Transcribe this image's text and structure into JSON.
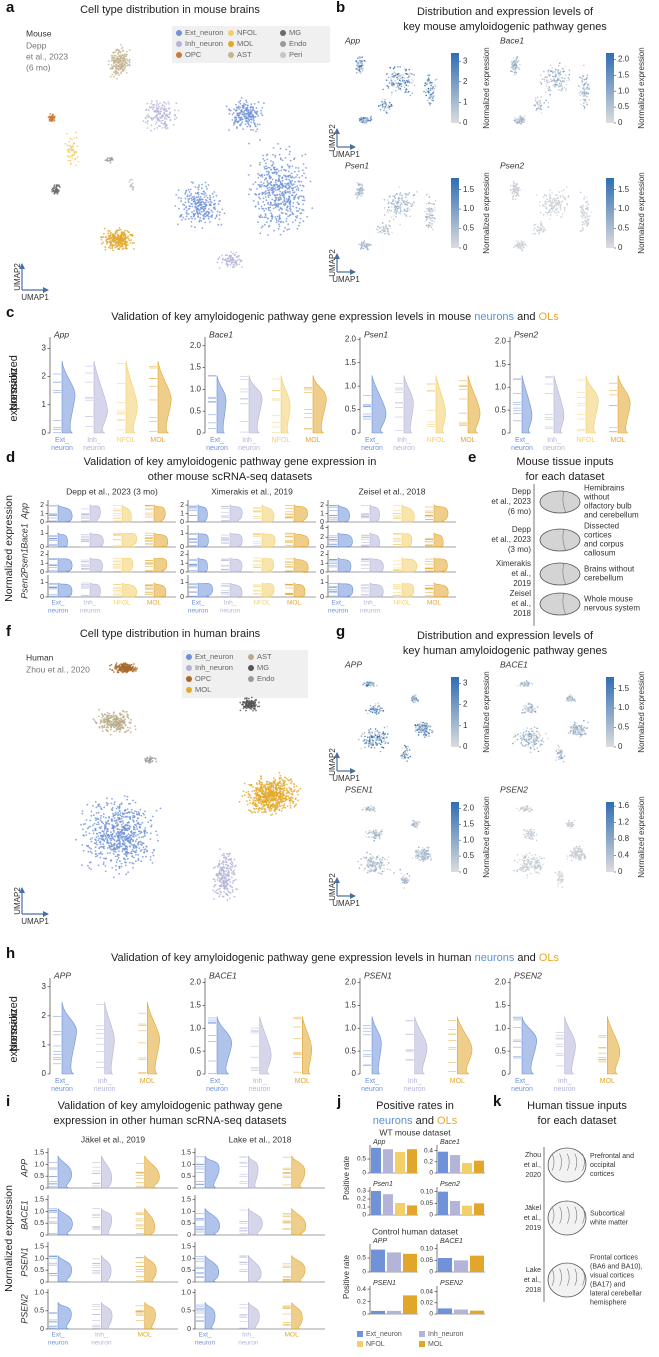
{
  "panel_a": {
    "label": "a",
    "title": "Cell type distribution in mouse brains",
    "species": "Mouse",
    "dataset": [
      "Depp",
      "et al., 2023",
      "(6 mo)"
    ],
    "legend": [
      {
        "name": "Ext_neuron",
        "color": "#7092d8"
      },
      {
        "name": "NFOL",
        "color": "#f3cf6a"
      },
      {
        "name": "MG",
        "color": "#6b6b6b"
      },
      {
        "name": "Inh_neuron",
        "color": "#b4b4d8"
      },
      {
        "name": "MOL",
        "color": "#e2a62b"
      },
      {
        "name": "Endo",
        "color": "#9a9a9a"
      },
      {
        "name": "OPC",
        "color": "#c9793a"
      },
      {
        "name": "AST",
        "color": "#c3b592"
      },
      {
        "name": "Peri",
        "color": "#c4c4c4"
      }
    ],
    "axis_x": "UMAP1",
    "axis_y": "UMAP2"
  },
  "panel_b": {
    "label": "b",
    "title": [
      "Distribution and expression levels of",
      "key mouse amyloidogenic pathway genes"
    ],
    "colorbar_label": "Normalized expression",
    "axis_x": "UMAP1",
    "axis_y": "UMAP2",
    "genes": [
      {
        "name": "App",
        "ticks": [
          0,
          1,
          2,
          3
        ],
        "lim": [
          0,
          3.4
        ]
      },
      {
        "name": "Bace1",
        "ticks": [
          0,
          0.5,
          {
            "value": 1,
            "label": "1.0"
          },
          1.5,
          {
            "value": 2,
            "label": "2.0"
          }
        ],
        "lim": [
          0,
          2.2
        ]
      },
      {
        "name": "Psen1",
        "ticks": [
          0,
          0.5,
          {
            "value": 1,
            "label": "1.0"
          },
          1.5
        ],
        "lim": [
          0,
          1.8
        ]
      },
      {
        "name": "Psen2",
        "ticks": [
          0,
          0.5,
          {
            "value": 1,
            "label": "1.0"
          },
          1.5
        ],
        "lim": [
          0,
          1.8
        ]
      }
    ]
  },
  "panel_c": {
    "label": "c",
    "title": [
      "Validation of key amyloidogenic pathway gene expression levels in mouse ",
      "neurons",
      " and ",
      "OLs"
    ],
    "y_label": [
      "Normalized",
      "expression"
    ],
    "categories": [
      [
        "Ext_",
        "neuron"
      ],
      [
        "Inh_",
        "neuron"
      ],
      [
        "NFOL"
      ],
      [
        "MOL"
      ]
    ],
    "colors": [
      "#7092d8",
      "#b4b4d8",
      "#f3cf6a",
      "#e2a62b"
    ],
    "genes": [
      {
        "name": "App",
        "yticks": [
          0,
          1,
          2,
          3
        ],
        "ylim": [
          0,
          3.4
        ]
      },
      {
        "name": "Bace1",
        "yticks": [
          0,
          0.5,
          {
            "value": 1,
            "label": "1.0"
          },
          1.5,
          {
            "value": 2,
            "label": "2.0"
          }
        ],
        "ylim": [
          0,
          2.2
        ]
      },
      {
        "name": "Psen1",
        "yticks": [
          0,
          0.5,
          {
            "value": 1,
            "label": "1.0"
          },
          1.5,
          {
            "value": 2,
            "label": "2.0"
          }
        ],
        "ylim": [
          0,
          2.05
        ]
      },
      {
        "name": "Psen2",
        "yticks": [
          0,
          0.5,
          {
            "value": 1,
            "label": "1.0"
          },
          1.5,
          {
            "value": 2,
            "label": "2.0"
          }
        ],
        "ylim": [
          0,
          2.1
        ]
      }
    ]
  },
  "panel_d": {
    "label": "d",
    "title": [
      "Validation of key amyloidogenic pathway gene expression in",
      "other mouse scRNA-seq datasets"
    ],
    "y_label": "Normalized expression",
    "genes": [
      "App",
      "Bace1",
      "Psen1",
      "Psen2"
    ],
    "categories": [
      [
        "Ext_",
        "neuron"
      ],
      [
        "Inh_",
        "neuron"
      ],
      [
        "NFOL"
      ],
      [
        "MOL"
      ]
    ],
    "colors": [
      "#7092d8",
      "#b4b4d8",
      "#f3cf6a",
      "#e2a62b"
    ],
    "datasets": [
      {
        "name": "Depp et al., 2023 (3 mo)",
        "rows": [
          {
            "yticks": [
              0,
              1,
              2
            ],
            "ylim": [
              0,
              2.6
            ]
          },
          {
            "yticks": [
              0,
              1
            ],
            "ylim": [
              0,
              1.6
            ]
          },
          {
            "yticks": [
              0,
              1,
              2
            ],
            "ylim": [
              0,
              2.5
            ]
          },
          {
            "yticks": [
              0,
              1
            ],
            "ylim": [
              0,
              1.5
            ]
          }
        ]
      },
      {
        "name": "Ximerakis et al., 2019",
        "rows": [
          {
            "yticks": [
              0,
              1,
              2
            ],
            "ylim": [
              0,
              2.6
            ]
          },
          {
            "yticks": [
              0,
              1
            ],
            "ylim": [
              0,
              1.6
            ]
          },
          {
            "yticks": [
              0,
              1,
              2
            ],
            "ylim": [
              0,
              2.5
            ]
          },
          {
            "yticks": [
              0,
              1
            ],
            "ylim": [
              0,
              1.5
            ]
          }
        ]
      },
      {
        "name": "Zeisel et al., 2018",
        "rows": [
          {
            "yticks": [
              0,
              1,
              2
            ],
            "ylim": [
              0,
              2.6
            ]
          },
          {
            "yticks": [
              0,
              2,
              4
            ],
            "ylim": [
              0,
              4.5
            ]
          },
          {
            "yticks": [
              0,
              1,
              2
            ],
            "ylim": [
              0,
              2.5
            ]
          },
          {
            "yticks": [
              0,
              1
            ],
            "ylim": [
              0,
              1.5
            ]
          }
        ]
      }
    ]
  },
  "panel_e": {
    "label": "e",
    "title": [
      "Mouse tissue inputs",
      "for each dataset"
    ],
    "rows": [
      {
        "dataset": [
          "Depp",
          "et al., 2023",
          "(6 mo)"
        ],
        "tissue": [
          "Hemibrains",
          "without",
          "olfactory bulb",
          "and cerebellum"
        ]
      },
      {
        "dataset": [
          "Depp",
          "et al., 2023",
          "(3 mo)"
        ],
        "tissue": [
          "Dissected",
          "cortices",
          "and corpus",
          "callosum"
        ]
      },
      {
        "dataset": [
          "Ximerakis",
          "et al.,",
          "2019"
        ],
        "tissue": [
          "Brains without",
          "cerebellum"
        ]
      },
      {
        "dataset": [
          "Zeisel",
          "et al.,",
          "2018"
        ],
        "tissue": [
          "Whole mouse",
          "nervous system"
        ]
      }
    ]
  },
  "panel_f": {
    "label": "f",
    "title": "Cell type distribution in human brains",
    "species": "Human",
    "dataset": "Zhou et al., 2020",
    "legend": [
      {
        "name": "Ext_neuron",
        "color": "#6f92d6"
      },
      {
        "name": "AST",
        "color": "#b9ab8a"
      },
      {
        "name": "Inh_neuron",
        "color": "#b2b2d6"
      },
      {
        "name": "MG",
        "color": "#555555"
      },
      {
        "name": "OPC",
        "color": "#a8692a"
      },
      {
        "name": "Endo",
        "color": "#9a9a9a"
      },
      {
        "name": "MOL",
        "color": "#e3a92a"
      }
    ],
    "axis_x": "UMAP1",
    "axis_y": "UMAP2"
  },
  "panel_g": {
    "label": "g",
    "title": [
      "Distribution and expression levels of",
      "key human amyloidogenic pathway genes"
    ],
    "colorbar_label": "Normalized expression",
    "axis_x": "UMAP1",
    "axis_y": "UMAP2",
    "genes": [
      {
        "name": "APP",
        "ticks": [
          0,
          1,
          2,
          3
        ],
        "lim": [
          0,
          3.3
        ]
      },
      {
        "name": "BACE1",
        "ticks": [
          0,
          0.5,
          {
            "value": 1,
            "label": "1.0"
          },
          1.5
        ],
        "lim": [
          0,
          1.8
        ]
      },
      {
        "name": "PSEN1",
        "ticks": [
          0,
          0.5,
          {
            "value": 1,
            "label": "1.0"
          },
          1.5,
          {
            "value": 2,
            "label": "2.0"
          }
        ],
        "lim": [
          0,
          2.2
        ]
      },
      {
        "name": "PSEN2",
        "ticks": [
          0,
          0.4,
          0.8,
          1.2,
          1.6
        ],
        "lim": [
          0,
          1.7
        ]
      }
    ]
  },
  "panel_h": {
    "label": "h",
    "title": [
      "Validation of key amyloidogenic pathway gene expression levels in human ",
      "neurons",
      " and ",
      "OLs"
    ],
    "y_label": [
      "Normalized",
      "expression"
    ],
    "categories": [
      [
        "Ext_",
        "neuron"
      ],
      [
        "Inh_",
        "neuron"
      ],
      [
        "MOL"
      ]
    ],
    "colors": [
      "#7092d8",
      "#b4b4d8",
      "#e2a62b"
    ],
    "genes": [
      {
        "name": "APP",
        "yticks": [
          0,
          1,
          2,
          3
        ],
        "ylim": [
          0,
          3.3
        ]
      },
      {
        "name": "BACE1",
        "yticks": [
          0,
          0.5,
          {
            "value": 1,
            "label": "1.0"
          },
          1.5,
          {
            "value": 2,
            "label": "2.0"
          }
        ],
        "ylim": [
          0,
          2.1
        ]
      },
      {
        "name": "PSEN1",
        "yticks": [
          0,
          0.5,
          {
            "value": 1,
            "label": "1.0"
          },
          1.5,
          {
            "value": 2,
            "label": "2.0"
          }
        ],
        "ylim": [
          0,
          2.1
        ]
      },
      {
        "name": "PSEN2",
        "yticks": [
          0,
          0.5,
          {
            "value": 1,
            "label": "1.0"
          },
          1.5,
          {
            "value": 2,
            "label": "2.0"
          }
        ],
        "ylim": [
          0,
          2.1
        ]
      }
    ]
  },
  "panel_i": {
    "label": "i",
    "title": [
      "Validation of key amyloidogenic pathway gene",
      "expression in other human scRNA-seq datasets"
    ],
    "y_label": "Normalized expression",
    "genes": [
      "APP",
      "BACE1",
      "PSEN1",
      "PSEN2"
    ],
    "categories": [
      [
        "Ext_",
        "neuron"
      ],
      [
        "Inh_",
        "neuron"
      ],
      [
        "MOL"
      ]
    ],
    "colors": [
      "#7092d8",
      "#b4b4d8",
      "#e2a62b"
    ],
    "datasets": [
      {
        "name": "Jäkel et al., 2019",
        "rows": [
          {
            "yticks": [
              0,
              0.5,
              {
                "value": 1,
                "label": "1.0"
              },
              1.5
            ],
            "ylim": [
              0,
              1.7
            ]
          },
          {
            "yticks": [
              0,
              0.5,
              {
                "value": 1,
                "label": "1.0"
              },
              1.5
            ],
            "ylim": [
              0,
              1.7
            ]
          },
          {
            "yticks": [
              0,
              0.5,
              {
                "value": 1,
                "label": "1.0"
              },
              1.5
            ],
            "ylim": [
              0,
              1.7
            ]
          },
          {
            "yticks": [
              0,
              0.5,
              {
                "value": 1,
                "label": "1.0"
              }
            ],
            "ylim": [
              0,
              1.1
            ]
          }
        ]
      },
      {
        "name": "Lake et al., 2018",
        "rows": [
          {
            "yticks": [
              0,
              0.5,
              {
                "value": 1,
                "label": "1.0"
              },
              1.5
            ],
            "ylim": [
              0,
              1.7
            ]
          },
          {
            "yticks": [
              0,
              0.5,
              {
                "value": 1,
                "label": "1.0"
              },
              1.5
            ],
            "ylim": [
              0,
              1.7
            ]
          },
          {
            "yticks": [
              0,
              0.5,
              {
                "value": 1,
                "label": "1.0"
              },
              1.5
            ],
            "ylim": [
              0,
              1.7
            ]
          },
          {
            "yticks": [
              0,
              0.5,
              {
                "value": 1,
                "label": "1.0"
              }
            ],
            "ylim": [
              0,
              1.1
            ]
          }
        ]
      }
    ]
  },
  "panel_j": {
    "label": "j",
    "title": [
      "Positive rates in",
      "neurons",
      " and ",
      "OLs"
    ],
    "y_label": "Positive rate",
    "legend": [
      {
        "name": "Ext_neuron",
        "color": "#7092d8"
      },
      {
        "name": "Inh_neuron",
        "color": "#b4b4d8"
      },
      {
        "name": "NFOL",
        "color": "#f3cf6a"
      },
      {
        "name": "MOL",
        "color": "#e2a62b"
      }
    ],
    "datasets": [
      {
        "name": "WT mouse dataset",
        "colors": [
          "#7092d8",
          "#b4b4d8",
          "#f3cf6a",
          "#e2a62b"
        ],
        "charts": [
          {
            "type": "bar",
            "gene": "App",
            "values": [
              0.9,
              0.85,
              0.75,
              0.85
            ],
            "ylim": [
              0,
              1
            ],
            "yticks": [
              0,
              0.5
            ]
          },
          {
            "type": "bar",
            "gene": "Bace1",
            "values": [
              0.38,
              0.32,
              0.18,
              0.22
            ],
            "ylim": [
              0,
              0.5
            ],
            "yticks": [
              0,
              0.2,
              0.4
            ]
          },
          {
            "type": "bar",
            "gene": "Psen1",
            "values": [
              0.3,
              0.26,
              0.15,
              0.12
            ],
            "ylim": [
              0,
              0.35
            ],
            "yticks": [
              0,
              0.1,
              0.2,
              0.3
            ]
          },
          {
            "type": "bar",
            "gene": "Psen2",
            "values": [
              0.1,
              0.06,
              0.04,
              0.05
            ],
            "ylim": [
              0,
              0.12
            ],
            "yticks": [
              0,
              0.05,
              {
                "value": 0.1,
                "label": "0.10"
              }
            ]
          }
        ]
      },
      {
        "name": "Control human dataset",
        "colors": [
          "#7092d8",
          "#b4b4d8",
          "#e2a62b"
        ],
        "charts": [
          {
            "type": "bar",
            "gene": "APP",
            "values": [
              0.8,
              0.7,
              0.65
            ],
            "ylim": [
              0,
              1
            ],
            "yticks": [
              0,
              0.5
            ]
          },
          {
            "type": "bar",
            "gene": "BACE1",
            "values": [
              0.06,
              0.05,
              0.07
            ],
            "ylim": [
              0,
              0.12
            ],
            "yticks": [
              0,
              0.05,
              {
                "value": 0.1,
                "label": "0.10"
              }
            ]
          },
          {
            "type": "bar",
            "gene": "PSEN1",
            "values": [
              0.05,
              0.05,
              0.3
            ],
            "ylim": [
              0,
              0.45
            ],
            "yticks": [
              0,
              0.2,
              0.4
            ]
          },
          {
            "type": "bar",
            "gene": "PSEN2",
            "values": [
              0.01,
              0.008,
              0.006
            ],
            "ylim": [
              0,
              0.05
            ],
            "yticks": [
              0,
              0.02,
              0.04
            ]
          }
        ]
      }
    ]
  },
  "panel_k": {
    "label": "k",
    "title": [
      "Human tissue inputs",
      "for each dataset"
    ],
    "rows": [
      {
        "dataset": [
          "Zhou",
          "et al.,",
          "2020"
        ],
        "tissue": [
          "Prefrontal and",
          "occipital",
          "cortices"
        ]
      },
      {
        "dataset": [
          "Jäkel",
          "et al.,",
          "2019"
        ],
        "tissue": [
          "Subcortical",
          "white matter"
        ]
      },
      {
        "dataset": [
          "Lake",
          "et al.,",
          "2018"
        ],
        "tissue": [
          "Frontal cortices",
          "(BA6 and BA10),",
          "visual cortices",
          "(BA17) and",
          "lateral cerebellar",
          "hemisphere"
        ]
      }
    ]
  }
}
